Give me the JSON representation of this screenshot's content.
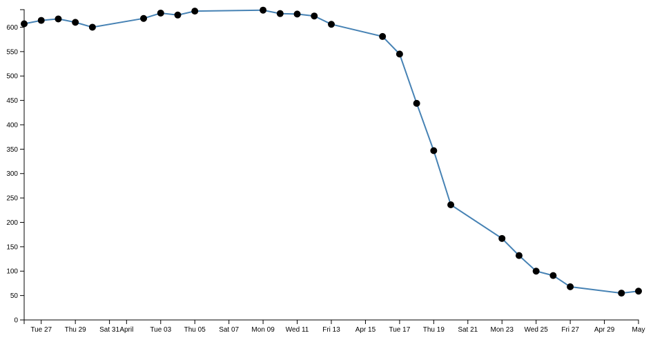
{
  "chart_data": {
    "type": "line",
    "title": "",
    "xlabel": "",
    "ylabel": "",
    "x_domain": [
      "2018-03-26",
      "2018-05-01"
    ],
    "ylim": [
      0,
      636
    ],
    "grid": false,
    "line_color": "#4682b4",
    "marker_color": "#000000",
    "y_ticks": [
      0,
      50,
      100,
      150,
      200,
      250,
      300,
      350,
      400,
      450,
      500,
      550,
      600
    ],
    "x_ticks": [
      {
        "date": "2018-03-27",
        "label": "Tue 27"
      },
      {
        "date": "2018-03-29",
        "label": "Thu 29"
      },
      {
        "date": "2018-03-31",
        "label": "Sat 31"
      },
      {
        "date": "2018-04-01",
        "label": "April"
      },
      {
        "date": "2018-04-03",
        "label": "Tue 03"
      },
      {
        "date": "2018-04-05",
        "label": "Thu 05"
      },
      {
        "date": "2018-04-07",
        "label": "Sat 07"
      },
      {
        "date": "2018-04-09",
        "label": "Mon 09"
      },
      {
        "date": "2018-04-11",
        "label": "Wed 11"
      },
      {
        "date": "2018-04-13",
        "label": "Fri 13"
      },
      {
        "date": "2018-04-15",
        "label": "Apr 15"
      },
      {
        "date": "2018-04-17",
        "label": "Tue 17"
      },
      {
        "date": "2018-04-19",
        "label": "Thu 19"
      },
      {
        "date": "2018-04-21",
        "label": "Sat 21"
      },
      {
        "date": "2018-04-23",
        "label": "Mon 23"
      },
      {
        "date": "2018-04-25",
        "label": "Wed 25"
      },
      {
        "date": "2018-04-27",
        "label": "Fri 27"
      },
      {
        "date": "2018-04-29",
        "label": "Apr 29"
      },
      {
        "date": "2018-05-01",
        "label": "May"
      }
    ],
    "points": [
      {
        "x": "2018-03-26",
        "y": 607
      },
      {
        "x": "2018-03-27",
        "y": 614
      },
      {
        "x": "2018-03-28",
        "y": 617
      },
      {
        "x": "2018-03-29",
        "y": 610
      },
      {
        "x": "2018-03-30",
        "y": 600
      },
      {
        "x": "2018-04-02",
        "y": 618
      },
      {
        "x": "2018-04-03",
        "y": 629
      },
      {
        "x": "2018-04-04",
        "y": 625
      },
      {
        "x": "2018-04-05",
        "y": 633
      },
      {
        "x": "2018-04-09",
        "y": 635
      },
      {
        "x": "2018-04-10",
        "y": 628
      },
      {
        "x": "2018-04-11",
        "y": 627
      },
      {
        "x": "2018-04-12",
        "y": 623
      },
      {
        "x": "2018-04-13",
        "y": 606
      },
      {
        "x": "2018-04-16",
        "y": 581
      },
      {
        "x": "2018-04-17",
        "y": 545
      },
      {
        "x": "2018-04-18",
        "y": 444
      },
      {
        "x": "2018-04-19",
        "y": 347
      },
      {
        "x": "2018-04-20",
        "y": 236
      },
      {
        "x": "2018-04-23",
        "y": 167
      },
      {
        "x": "2018-04-24",
        "y": 132
      },
      {
        "x": "2018-04-25",
        "y": 100
      },
      {
        "x": "2018-04-26",
        "y": 91
      },
      {
        "x": "2018-04-27",
        "y": 68
      },
      {
        "x": "2018-04-30",
        "y": 55
      },
      {
        "x": "2018-05-01",
        "y": 59
      }
    ]
  }
}
